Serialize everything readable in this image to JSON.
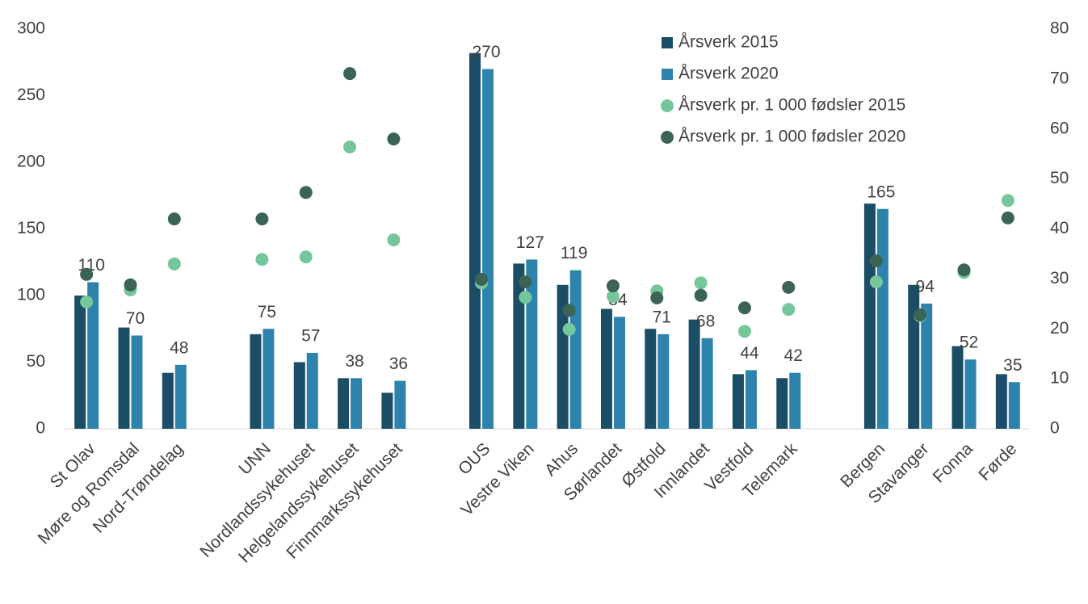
{
  "chart_data": {
    "type": "bar",
    "categories": [
      "St Olav",
      "Møre og Romsdal",
      "Nord-Trøndelag",
      null,
      "UNN",
      "Nordlandssykehuset",
      "Helgelandssykehuset",
      "Finnmarkssykehuset",
      null,
      "OUS",
      "Vestre Viken",
      "Ahus",
      "Sørlandet",
      "Østfold",
      "Innlandet",
      "Vestfold",
      "Telemark",
      null,
      "Bergen",
      "Stavanger",
      "Fonna",
      "Førde"
    ],
    "series": [
      {
        "name": "Årsverk 2015",
        "type": "bar",
        "color": "#1b4d66",
        "values": [
          100,
          76,
          42,
          null,
          71,
          50,
          38,
          27,
          null,
          282,
          124,
          108,
          90,
          75,
          82,
          41,
          38,
          null,
          169,
          108,
          62,
          41
        ]
      },
      {
        "name": "Årsverk 2020",
        "type": "bar",
        "color": "#2e83ad",
        "data_labels": true,
        "values": [
          110,
          70,
          48,
          null,
          75,
          57,
          38,
          36,
          null,
          270,
          127,
          119,
          84,
          71,
          68,
          44,
          42,
          null,
          165,
          94,
          52,
          35
        ]
      },
      {
        "name": "Årsverk pr. 1 000 fødsler 2015",
        "type": "scatter",
        "axis": "y2",
        "color": "#76c69c",
        "values": [
          25.4,
          27.8,
          33,
          null,
          33.9,
          34.4,
          56.4,
          37.8,
          null,
          29.2,
          26.3,
          19.9,
          26.5,
          27.6,
          29.2,
          19.5,
          23.9,
          null,
          29.4,
          22.6,
          31.3,
          45.7
        ]
      },
      {
        "name": "Årsverk pr. 1 000 fødsler 2020",
        "type": "scatter",
        "axis": "y2",
        "color": "#3c6454",
        "values": [
          30.9,
          28.8,
          42,
          null,
          42,
          47.3,
          71.1,
          58,
          null,
          29.9,
          29.4,
          23.7,
          28.6,
          26.2,
          26.7,
          24.2,
          28.3,
          null,
          33.6,
          22.8,
          31.8,
          42.2
        ]
      }
    ],
    "ylim": [
      0,
      300
    ],
    "yticks": [
      0,
      50,
      100,
      150,
      200,
      250,
      300
    ],
    "y2lim": [
      0,
      80
    ],
    "y2ticks": [
      0,
      10,
      20,
      30,
      40,
      50,
      60,
      70,
      80
    ],
    "grid": false,
    "legend": "top-right"
  }
}
